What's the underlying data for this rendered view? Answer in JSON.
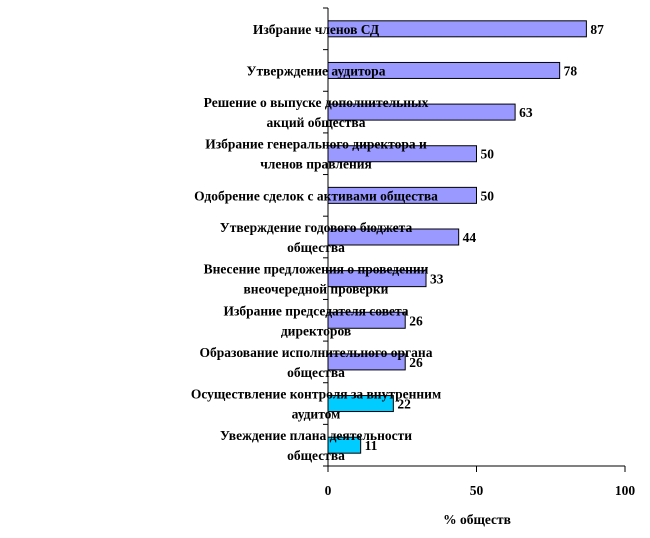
{
  "chart_data": {
    "type": "bar",
    "orientation": "horizontal",
    "categories": [
      [
        "Избрание членов СД"
      ],
      [
        "Утверждение аудитора"
      ],
      [
        "Решение о выпуске дополнительных",
        "акций общества"
      ],
      [
        "Избрание генерального директора и",
        "членов правления"
      ],
      [
        "Одобрение сделок  с активами общества"
      ],
      [
        "Утверждение годового бюджета",
        "общества"
      ],
      [
        "Внесение предложения о проведении",
        "внеочередной проверки"
      ],
      [
        "Избрание председателя совета",
        "директоров"
      ],
      [
        "Образование исполнительного органа",
        "общества"
      ],
      [
        "Осуществление контроля за внутренним",
        "аудитом"
      ],
      [
        "Увеждение плана деятельности",
        "общества"
      ]
    ],
    "values": [
      87,
      78,
      63,
      50,
      50,
      44,
      33,
      26,
      26,
      22,
      11
    ],
    "value_labels": [
      "87",
      "78",
      "63",
      "50",
      "50",
      "44",
      "33",
      "26",
      "26",
      "22",
      "11"
    ],
    "bar_colors": [
      "#9999ff",
      "#9999ff",
      "#9999ff",
      "#9999ff",
      "#9999ff",
      "#9999ff",
      "#9999ff",
      "#9999ff",
      "#9999ff",
      "#00ccff",
      "#00ccff"
    ],
    "xlabel": "% обществ",
    "ylabel": "",
    "xlim": [
      0,
      100
    ],
    "xticks": [
      0,
      50,
      100
    ],
    "xtick_labels": [
      "0",
      "50",
      "100"
    ],
    "grid": false,
    "legend": "none"
  }
}
